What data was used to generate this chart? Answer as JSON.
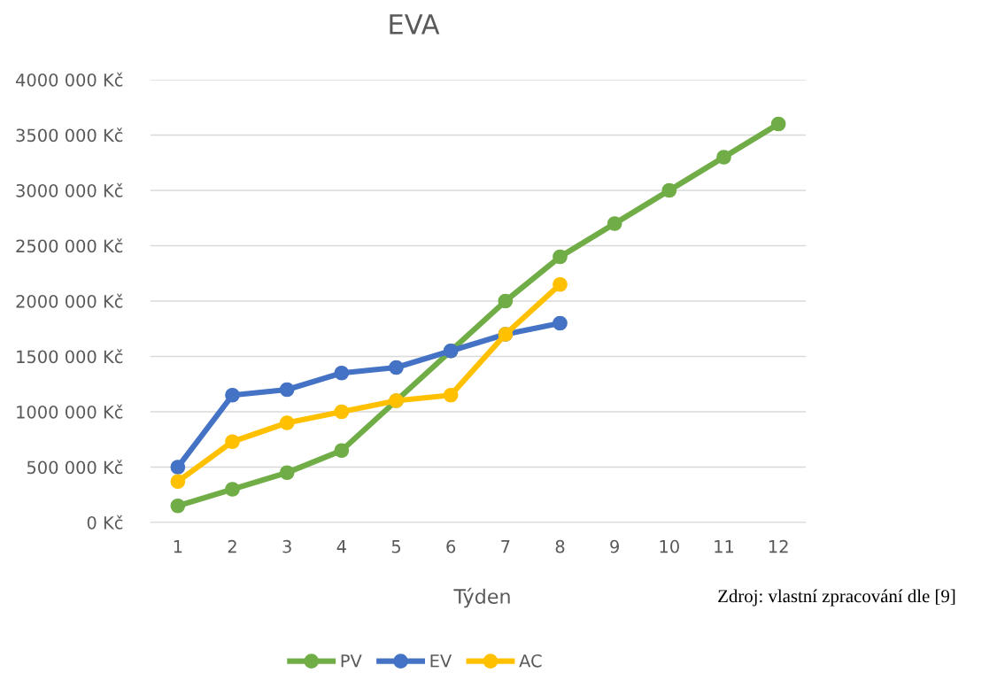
{
  "chart_data": {
    "type": "line",
    "title": "EVA",
    "xlabel": "Týden",
    "categories": [
      "1",
      "2",
      "3",
      "4",
      "5",
      "6",
      "7",
      "8",
      "9",
      "10",
      "11",
      "12"
    ],
    "series": [
      {
        "name": "PV",
        "color": "#70ad47",
        "values": [
          150000,
          300000,
          450000,
          650000,
          1100000,
          1550000,
          2000000,
          2400000,
          2700000,
          3000000,
          3300000,
          3600000
        ]
      },
      {
        "name": "EV",
        "color": "#4472c4",
        "values": [
          500000,
          1150000,
          1200000,
          1350000,
          1400000,
          1550000,
          1700000,
          1800000,
          null,
          null,
          null,
          null
        ]
      },
      {
        "name": "AC",
        "color": "#ffc000",
        "values": [
          370000,
          730000,
          900000,
          1000000,
          1100000,
          1150000,
          1700000,
          2150000,
          null,
          null,
          null,
          null
        ]
      }
    ],
    "ylim": [
      0,
      4000000
    ],
    "yticks": [
      {
        "value": 0,
        "label": "0 Kč"
      },
      {
        "value": 500000,
        "label": "500 000 Kč"
      },
      {
        "value": 1000000,
        "label": "1000 000 Kč"
      },
      {
        "value": 1500000,
        "label": "1500 000 Kč"
      },
      {
        "value": 2000000,
        "label": "2000 000 Kč"
      },
      {
        "value": 2500000,
        "label": "2500 000 Kč"
      },
      {
        "value": 3000000,
        "label": "3000 000 Kč"
      },
      {
        "value": 3500000,
        "label": "3500 000 Kč"
      },
      {
        "value": 4000000,
        "label": "4000 000 Kč"
      }
    ],
    "grid": "y",
    "legend": "bottom",
    "marker": "circle",
    "line_style": "solid",
    "annotations": [
      "Zdroj: vlastní zpracování dle [9]"
    ]
  }
}
